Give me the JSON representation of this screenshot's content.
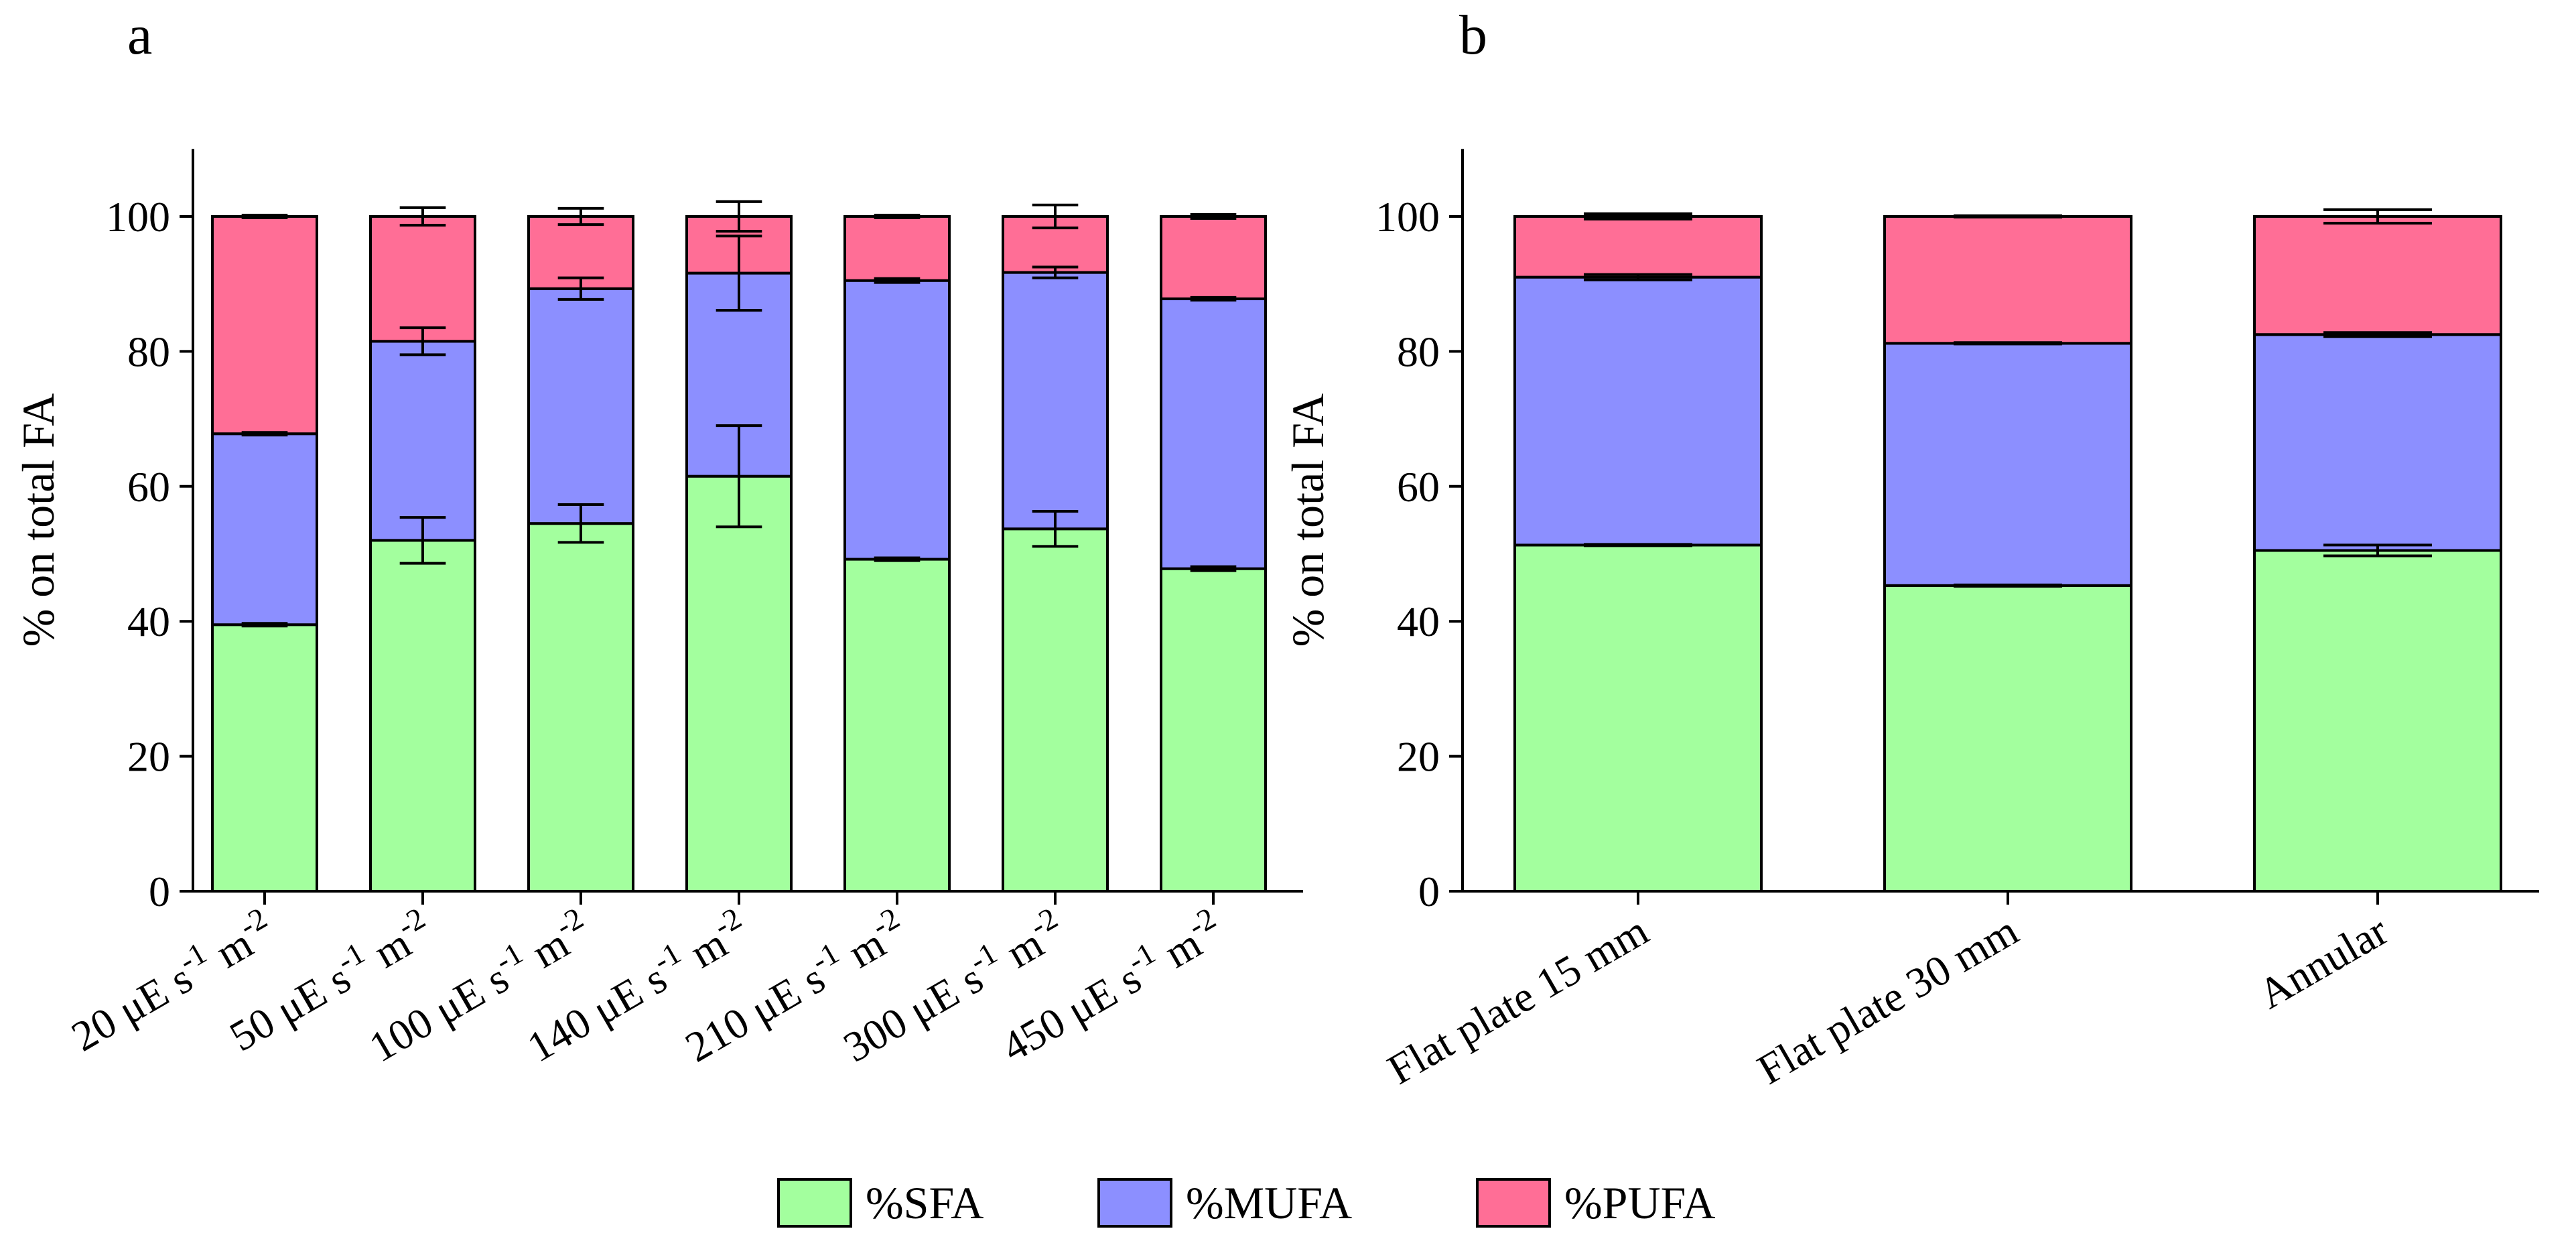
{
  "colors": {
    "SFA": "#a3ff9e",
    "MUFA": "#8c8fff",
    "PUFA": "#ff6e96"
  },
  "legend": {
    "position": "bottom-center",
    "items": [
      {
        "key": "SFA",
        "label": "%SFA"
      },
      {
        "key": "MUFA",
        "label": "%MUFA"
      },
      {
        "key": "PUFA",
        "label": "%PUFA"
      }
    ]
  },
  "chart_data": [
    {
      "type": "bar",
      "stacked": true,
      "panel_label": "a",
      "ylabel": "% on total  FA",
      "ylim": [
        0,
        110
      ],
      "yticks": [
        0,
        20,
        40,
        60,
        80,
        100
      ],
      "categories": [
        {
          "num": "20",
          "unit_pre": "μE s",
          "exp1": "-1",
          "unit_mid": " m",
          "exp2": "-2"
        },
        {
          "num": "50",
          "unit_pre": "μE s",
          "exp1": "-1",
          "unit_mid": " m",
          "exp2": "-2"
        },
        {
          "num": "100",
          "unit_pre": "μE s",
          "exp1": "-1",
          "unit_mid": " m",
          "exp2": "-2"
        },
        {
          "num": "140",
          "unit_pre": "μE s",
          "exp1": "-1",
          "unit_mid": " m",
          "exp2": "-2"
        },
        {
          "num": "210",
          "unit_pre": "μE s",
          "exp1": "-1",
          "unit_mid": " m",
          "exp2": "-2"
        },
        {
          "num": "300",
          "unit_pre": "μE s",
          "exp1": "-1",
          "unit_mid": " m",
          "exp2": "-2"
        },
        {
          "num": "450",
          "unit_pre": "μE s",
          "exp1": "-1",
          "unit_mid": " m",
          "exp2": "-2"
        }
      ],
      "series": [
        {
          "name": "%SFA",
          "key": "SFA",
          "values": [
            39.5,
            52.0,
            54.5,
            61.5,
            49.2,
            53.7,
            47.8
          ],
          "errors": [
            0.2,
            3.4,
            2.8,
            7.5,
            0.2,
            2.6,
            0.3
          ]
        },
        {
          "name": "%MUFA",
          "key": "MUFA",
          "values": [
            28.3,
            29.5,
            34.8,
            30.1,
            41.3,
            38.0,
            40.0
          ],
          "errors": [
            0.2,
            2.0,
            1.6,
            5.5,
            0.3,
            0.8,
            0.2
          ]
        },
        {
          "name": "%PUFA",
          "key": "PUFA",
          "values": [
            32.2,
            18.5,
            10.7,
            8.4,
            9.5,
            8.3,
            12.2
          ],
          "errors": [
            0.2,
            1.3,
            1.2,
            2.2,
            0.2,
            1.7,
            0.3
          ]
        }
      ]
    },
    {
      "type": "bar",
      "stacked": true,
      "panel_label": "b",
      "ylabel": "% on total  FA",
      "ylim": [
        0,
        110
      ],
      "yticks": [
        0,
        20,
        40,
        60,
        80,
        100
      ],
      "categories": [
        {
          "text": "Flat plate 15 mm"
        },
        {
          "text": "Flat plate 30 mm"
        },
        {
          "text": "Annular"
        }
      ],
      "series": [
        {
          "name": "%SFA",
          "key": "SFA",
          "values": [
            51.3,
            45.3,
            50.5
          ],
          "errors": [
            0.1,
            0.1,
            0.8
          ]
        },
        {
          "name": "%MUFA",
          "key": "MUFA",
          "values": [
            39.7,
            35.9,
            32.0
          ],
          "errors": [
            0.4,
            0.1,
            0.3
          ]
        },
        {
          "name": "%PUFA",
          "key": "PUFA",
          "values": [
            9.0,
            18.8,
            17.5
          ],
          "errors": [
            0.4,
            0.1,
            1.0
          ]
        }
      ]
    }
  ]
}
